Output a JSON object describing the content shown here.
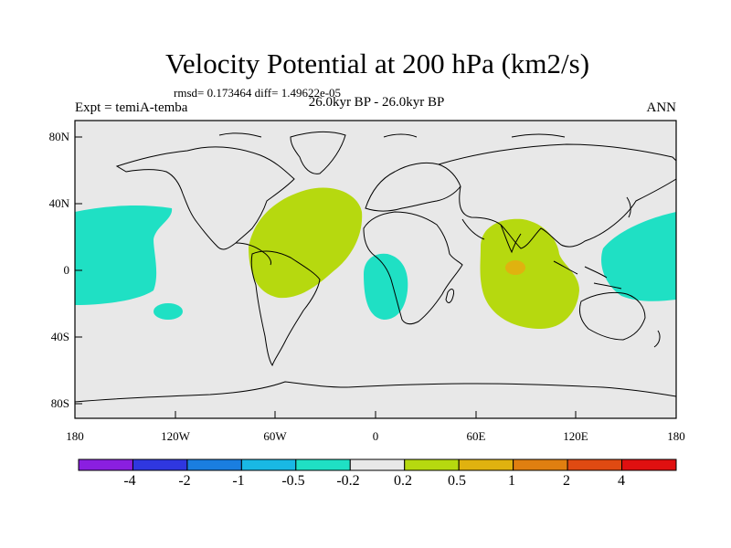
{
  "title": "Velocity Potential at 200 hPa (km2/s)",
  "stats": "rmsd= 0.173464  diff= 1.49622e-05",
  "experiment": "Expt = temiA-temba",
  "period": "26.0kyr BP - 26.0kyr BP",
  "season": "ANN",
  "lat_labels": [
    "80N",
    "40N",
    "0",
    "40S",
    "80S"
  ],
  "lon_labels": [
    "180",
    "120W",
    "60W",
    "0",
    "60E",
    "120E",
    "180"
  ],
  "colorbar": {
    "labels": [
      "-4",
      "-2",
      "-1",
      "-0.5",
      "-0.2",
      "0.2",
      "0.5",
      "1",
      "2",
      "4"
    ],
    "colors": [
      "#8a1fe0",
      "#2f37e0",
      "#1a7ee0",
      "#19b8e4",
      "#1fe0c4",
      "#e8e8e8",
      "#b6d90f",
      "#e0b20f",
      "#e07f10",
      "#e04a12",
      "#e01010"
    ]
  },
  "colors": {
    "background": "#e8e8e8",
    "positive_weak": "#b6d90f",
    "negative_weak": "#1fe0c4",
    "positive_mid": "#e0b20f"
  }
}
